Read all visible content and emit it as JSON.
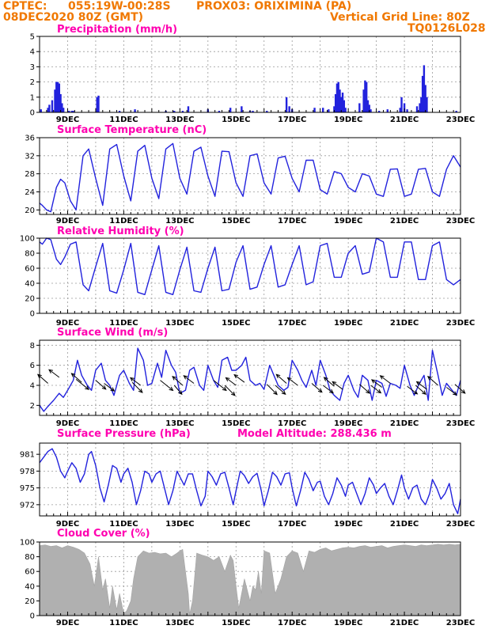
{
  "header": {
    "line1_left": "CPTEC:",
    "line1_coords": "055:19W-00:28S",
    "line1_station": "PROX03: ORIXIMINA (PA)",
    "line2_date": "08DEC2020 80Z (GMT)",
    "line2_grid": "Vertical Grid Line: 80Z",
    "line3_code": "TQ0126L028"
  },
  "colors": {
    "header": "#f07800",
    "title": "#ff00b0",
    "line": "#2222dd",
    "cloud": "#b0b0b0",
    "arrow": "#000000"
  },
  "chart_data": [
    {
      "type": "bar",
      "title": "Precipitation (mm/h)",
      "xlim": [
        8,
        23
      ],
      "ylim": [
        0,
        5
      ],
      "yticks": [
        0,
        1,
        2,
        3,
        4,
        5
      ],
      "xticks": [
        "9DEC",
        "11DEC",
        "13DEC",
        "15DEC",
        "17DEC",
        "19DEC",
        "21DEC",
        "23DEC"
      ],
      "x": [
        8.05,
        8.3,
        8.35,
        8.45,
        8.55,
        8.6,
        8.65,
        8.7,
        8.75,
        8.8,
        8.85,
        9.05,
        9.15,
        9.2,
        10.05,
        10.1,
        10.85,
        11.4,
        12.5,
        12.8,
        13.1,
        13.3,
        14.0,
        14.4,
        14.8,
        15.2,
        15.5,
        15.6,
        16.1,
        16.8,
        16.9,
        17.0,
        17.8,
        18.1,
        18.3,
        18.5,
        18.55,
        18.6,
        18.65,
        18.7,
        18.75,
        18.8,
        18.85,
        18.9,
        19.4,
        19.55,
        19.6,
        19.65,
        19.7,
        19.75,
        19.8,
        20.1,
        20.4,
        20.85,
        20.9,
        21.0,
        21.1,
        21.45,
        21.55,
        21.6,
        21.65,
        21.7,
        21.75,
        21.8,
        22.85
      ],
      "values": [
        0.2,
        0.3,
        0.5,
        0.8,
        1.5,
        2.0,
        2.0,
        1.9,
        1.2,
        0.6,
        0.3,
        0.1,
        0.1,
        0.1,
        1.0,
        1.1,
        0.1,
        0.2,
        0.1,
        0.1,
        0.1,
        0.4,
        0.2,
        0.1,
        0.3,
        0.4,
        0.1,
        0.1,
        0.1,
        1.0,
        0.4,
        0.2,
        0.3,
        0.3,
        0.2,
        0.4,
        1.2,
        1.9,
        2.0,
        1.5,
        1.0,
        1.3,
        0.8,
        0.3,
        0.6,
        1.5,
        2.1,
        2.0,
        0.8,
        0.5,
        0.2,
        0.1,
        0.2,
        0.3,
        1.0,
        0.6,
        0.2,
        0.4,
        0.6,
        1.0,
        2.4,
        3.1,
        1.8,
        1.0,
        0.1
      ]
    },
    {
      "type": "line",
      "title": "Surface Temperature (nC)",
      "xlim": [
        8,
        23
      ],
      "ylim": [
        19,
        36
      ],
      "yticks": [
        20,
        24,
        28,
        32,
        36
      ],
      "xticks": [
        "9DEC",
        "11DEC",
        "13DEC",
        "15DEC",
        "17DEC",
        "19DEC",
        "21DEC",
        "23DEC"
      ],
      "x": [
        8.0,
        8.1,
        8.25,
        8.4,
        8.6,
        8.75,
        8.9,
        9.1,
        9.3,
        9.55,
        9.75,
        10.0,
        10.25,
        10.5,
        10.75,
        11.0,
        11.25,
        11.5,
        11.75,
        12.0,
        12.25,
        12.5,
        12.75,
        13.0,
        13.25,
        13.5,
        13.75,
        14.0,
        14.25,
        14.5,
        14.75,
        15.0,
        15.25,
        15.5,
        15.75,
        16.0,
        16.25,
        16.5,
        16.75,
        17.0,
        17.25,
        17.5,
        17.75,
        18.0,
        18.25,
        18.5,
        18.75,
        19.0,
        19.25,
        19.5,
        19.75,
        20.0,
        20.25,
        20.5,
        20.75,
        21.0,
        21.25,
        21.5,
        21.75,
        22.0,
        22.25,
        22.5,
        22.75,
        23.0
      ],
      "values": [
        21.5,
        21.0,
        20.0,
        19.6,
        25.0,
        26.8,
        26.0,
        22.0,
        20.0,
        32.0,
        33.5,
        27.0,
        21.0,
        33.5,
        34.5,
        27.5,
        22.0,
        33.0,
        34.3,
        27.0,
        22.5,
        33.5,
        34.7,
        27.0,
        23.5,
        33.0,
        33.9,
        27.5,
        23.0,
        33.0,
        32.9,
        26.0,
        23.0,
        32.0,
        32.4,
        26.0,
        23.5,
        31.5,
        31.9,
        27.0,
        24.0,
        31.0,
        31.0,
        24.5,
        23.5,
        28.5,
        28.0,
        25.0,
        24.0,
        28.0,
        27.5,
        23.5,
        23.0,
        29.0,
        29.1,
        23.0,
        23.5,
        29.0,
        29.2,
        24.0,
        23.0,
        29.0,
        32.0,
        29.5
      ]
    },
    {
      "type": "line",
      "title": "Relative Humidity (%)",
      "xlim": [
        8,
        23
      ],
      "ylim": [
        0,
        100
      ],
      "yticks": [
        0,
        20,
        40,
        60,
        80,
        100
      ],
      "xticks": [
        "9DEC",
        "11DEC",
        "13DEC",
        "15DEC",
        "17DEC",
        "19DEC",
        "21DEC",
        "23DEC"
      ],
      "x": [
        8.0,
        8.1,
        8.25,
        8.4,
        8.6,
        8.75,
        8.9,
        9.1,
        9.3,
        9.55,
        9.75,
        10.0,
        10.25,
        10.5,
        10.75,
        11.0,
        11.25,
        11.5,
        11.75,
        12.0,
        12.25,
        12.5,
        12.75,
        13.0,
        13.25,
        13.5,
        13.75,
        14.0,
        14.25,
        14.5,
        14.75,
        15.0,
        15.25,
        15.5,
        15.75,
        16.0,
        16.25,
        16.5,
        16.75,
        17.0,
        17.25,
        17.5,
        17.75,
        18.0,
        18.25,
        18.5,
        18.75,
        19.0,
        19.25,
        19.5,
        19.75,
        20.0,
        20.25,
        20.5,
        20.75,
        21.0,
        21.25,
        21.5,
        21.75,
        22.0,
        22.25,
        22.5,
        22.75,
        23.0
      ],
      "values": [
        95,
        92,
        100,
        98,
        72,
        65,
        75,
        92,
        95,
        38,
        30,
        62,
        93,
        30,
        27,
        58,
        93,
        28,
        25,
        58,
        90,
        28,
        25,
        58,
        88,
        30,
        28,
        60,
        88,
        30,
        32,
        68,
        90,
        32,
        35,
        65,
        90,
        35,
        38,
        65,
        90,
        38,
        42,
        90,
        93,
        48,
        48,
        80,
        90,
        52,
        55,
        100,
        95,
        48,
        48,
        95,
        95,
        45,
        45,
        90,
        95,
        45,
        38,
        45
      ]
    },
    {
      "type": "line",
      "title": "Surface Wind (m/s)",
      "xlim": [
        8,
        23
      ],
      "ylim": [
        1,
        8.5
      ],
      "yticks": [
        2,
        4,
        6,
        8
      ],
      "xticks": [
        "9DEC",
        "11DEC",
        "13DEC",
        "15DEC",
        "17DEC",
        "19DEC",
        "21DEC",
        "23DEC"
      ],
      "x": [
        8.0,
        8.15,
        8.3,
        8.5,
        8.7,
        8.85,
        9.0,
        9.2,
        9.35,
        9.5,
        9.7,
        9.85,
        10.0,
        10.2,
        10.35,
        10.5,
        10.65,
        10.85,
        11.0,
        11.2,
        11.35,
        11.5,
        11.7,
        11.85,
        12.0,
        12.2,
        12.35,
        12.5,
        12.7,
        12.85,
        13.0,
        13.2,
        13.35,
        13.5,
        13.7,
        13.85,
        14.0,
        14.2,
        14.35,
        14.5,
        14.7,
        14.85,
        15.0,
        15.2,
        15.35,
        15.5,
        15.7,
        15.85,
        16.0,
        16.2,
        16.35,
        16.5,
        16.7,
        16.85,
        17.0,
        17.2,
        17.35,
        17.5,
        17.7,
        17.85,
        18.0,
        18.2,
        18.35,
        18.5,
        18.7,
        18.85,
        19.0,
        19.2,
        19.35,
        19.5,
        19.7,
        19.85,
        20.0,
        20.2,
        20.35,
        20.5,
        20.7,
        20.85,
        21.0,
        21.2,
        21.35,
        21.5,
        21.7,
        21.85,
        22.0,
        22.2,
        22.35,
        22.5,
        22.7,
        22.85,
        23.0
      ],
      "values": [
        2.0,
        1.4,
        1.9,
        2.5,
        3.2,
        2.8,
        3.5,
        4.5,
        6.5,
        5.0,
        4.0,
        3.5,
        5.5,
        6.2,
        4.5,
        4.0,
        3.0,
        5.0,
        5.5,
        4.2,
        3.5,
        7.7,
        6.5,
        4.0,
        4.2,
        6.2,
        4.8,
        7.5,
        6.0,
        5.3,
        3.2,
        3.5,
        5.5,
        5.8,
        4.0,
        3.5,
        6.0,
        4.5,
        3.8,
        6.5,
        6.8,
        5.5,
        5.5,
        6.0,
        6.8,
        4.5,
        4.0,
        4.2,
        3.6,
        6.0,
        5.0,
        4.0,
        3.5,
        3.8,
        6.5,
        5.5,
        4.5,
        3.8,
        5.5,
        4.0,
        6.5,
        5.0,
        3.5,
        3.0,
        2.5,
        4.2,
        5.0,
        3.5,
        2.8,
        5.0,
        4.5,
        2.5,
        4.5,
        4.2,
        2.9,
        4.2,
        4.0,
        3.7,
        6.0,
        4.0,
        3.0,
        4.0,
        5.0,
        2.5,
        7.5,
        5.0,
        3.0,
        4.2,
        3.5,
        3.0,
        4.5
      ]
    },
    {
      "type": "line",
      "title": "Surface Pressure (hPa)",
      "annotation": "Model Altitude: 288.436 m",
      "xlim": [
        8,
        23
      ],
      "ylim": [
        970,
        983
      ],
      "yticks": [
        972,
        975,
        978,
        981
      ],
      "xticks": [
        "9DEC",
        "11DEC",
        "13DEC",
        "15DEC",
        "17DEC",
        "19DEC",
        "21DEC",
        "23DEC"
      ],
      "x": [
        8.0,
        8.15,
        8.3,
        8.45,
        8.6,
        8.75,
        8.9,
        9.0,
        9.15,
        9.3,
        9.45,
        9.6,
        9.75,
        9.85,
        10.0,
        10.15,
        10.3,
        10.45,
        10.6,
        10.75,
        10.9,
        11.0,
        11.15,
        11.3,
        11.45,
        11.6,
        11.75,
        11.9,
        12.0,
        12.15,
        12.3,
        12.45,
        12.6,
        12.75,
        12.9,
        13.0,
        13.15,
        13.3,
        13.45,
        13.6,
        13.75,
        13.9,
        14.0,
        14.15,
        14.3,
        14.45,
        14.6,
        14.75,
        14.9,
        15.0,
        15.15,
        15.3,
        15.45,
        15.6,
        15.75,
        15.9,
        16.0,
        16.15,
        16.3,
        16.45,
        16.6,
        16.75,
        16.9,
        17.0,
        17.15,
        17.3,
        17.45,
        17.6,
        17.75,
        17.9,
        18.0,
        18.15,
        18.3,
        18.45,
        18.6,
        18.75,
        18.9,
        19.0,
        19.15,
        19.3,
        19.45,
        19.6,
        19.75,
        19.9,
        20.0,
        20.15,
        20.3,
        20.45,
        20.6,
        20.75,
        20.9,
        21.0,
        21.15,
        21.3,
        21.45,
        21.6,
        21.75,
        21.9,
        22.0,
        22.15,
        22.3,
        22.45,
        22.6,
        22.75,
        22.9,
        23.0
      ],
      "values": [
        979.5,
        980.5,
        981.5,
        982.0,
        980.5,
        978.0,
        976.8,
        978.0,
        979.5,
        978.5,
        976.0,
        977.5,
        981.0,
        981.5,
        979.0,
        975.0,
        972.5,
        975.5,
        979.0,
        978.5,
        976.0,
        977.5,
        978.5,
        976.0,
        972.0,
        974.5,
        978.0,
        977.5,
        976.0,
        977.5,
        978.0,
        975.0,
        972.0,
        974.5,
        978.0,
        977.0,
        975.5,
        977.5,
        977.5,
        974.5,
        971.8,
        973.5,
        978.0,
        977.0,
        975.5,
        977.5,
        977.8,
        975.0,
        972.0,
        974.5,
        978.0,
        977.2,
        975.8,
        977.0,
        977.6,
        974.5,
        971.8,
        974.5,
        977.8,
        977.0,
        975.5,
        977.5,
        977.7,
        975.0,
        971.8,
        974.5,
        977.8,
        976.5,
        974.5,
        976.0,
        976.2,
        973.5,
        972.0,
        974.0,
        976.8,
        975.5,
        973.5,
        975.5,
        976.0,
        974.0,
        972.0,
        974.0,
        976.8,
        975.5,
        974.0,
        975.0,
        975.8,
        973.5,
        972.0,
        974.5,
        977.3,
        975.0,
        973.0,
        975.0,
        975.5,
        973.0,
        972.0,
        974.0,
        976.5,
        975.0,
        973.0,
        974.0,
        975.8,
        972.0,
        970.4,
        973.0
      ]
    },
    {
      "type": "area",
      "title": "Cloud Cover (%)",
      "xlim": [
        8,
        23
      ],
      "ylim": [
        0,
        100
      ],
      "yticks": [
        0,
        20,
        40,
        60,
        80,
        100
      ],
      "xticks": [
        "9DEC",
        "11DEC",
        "13DEC",
        "15DEC",
        "17DEC",
        "19DEC",
        "21DEC",
        "23DEC"
      ],
      "x": [
        8.0,
        8.2,
        8.4,
        8.6,
        8.8,
        9.0,
        9.2,
        9.4,
        9.6,
        9.8,
        9.95,
        10.1,
        10.25,
        10.35,
        10.5,
        10.6,
        10.75,
        10.85,
        11.0,
        11.1,
        11.25,
        11.35,
        11.5,
        11.7,
        11.9,
        12.1,
        12.3,
        12.5,
        12.7,
        12.9,
        13.0,
        13.1,
        13.2,
        13.3,
        13.35,
        13.45,
        13.6,
        13.8,
        14.0,
        14.2,
        14.4,
        14.6,
        14.8,
        14.9,
        15.0,
        15.1,
        15.3,
        15.5,
        15.6,
        15.7,
        15.8,
        15.9,
        16.0,
        16.2,
        16.4,
        16.6,
        16.8,
        17.0,
        17.2,
        17.4,
        17.6,
        17.8,
        18.0,
        18.2,
        18.4,
        18.6,
        18.8,
        19.0,
        19.2,
        19.4,
        19.6,
        19.8,
        20.0,
        20.2,
        20.4,
        20.6,
        20.8,
        21.0,
        21.2,
        21.4,
        21.6,
        21.8,
        22.0,
        22.2,
        22.4,
        22.6,
        22.8,
        23.0
      ],
      "values": [
        95,
        96,
        94,
        95,
        92,
        95,
        93,
        90,
        85,
        70,
        40,
        80,
        35,
        50,
        10,
        40,
        8,
        30,
        3,
        6,
        20,
        50,
        80,
        88,
        85,
        86,
        84,
        85,
        80,
        85,
        88,
        90,
        60,
        30,
        2,
        20,
        85,
        82,
        80,
        75,
        80,
        60,
        82,
        75,
        40,
        10,
        50,
        20,
        40,
        35,
        60,
        30,
        88,
        85,
        30,
        50,
        80,
        88,
        85,
        60,
        88,
        86,
        90,
        92,
        88,
        90,
        92,
        93,
        92,
        94,
        95,
        93,
        94,
        95,
        92,
        94,
        95,
        96,
        95,
        94,
        96,
        95,
        96,
        97,
        96,
        97,
        96,
        97
      ]
    }
  ]
}
